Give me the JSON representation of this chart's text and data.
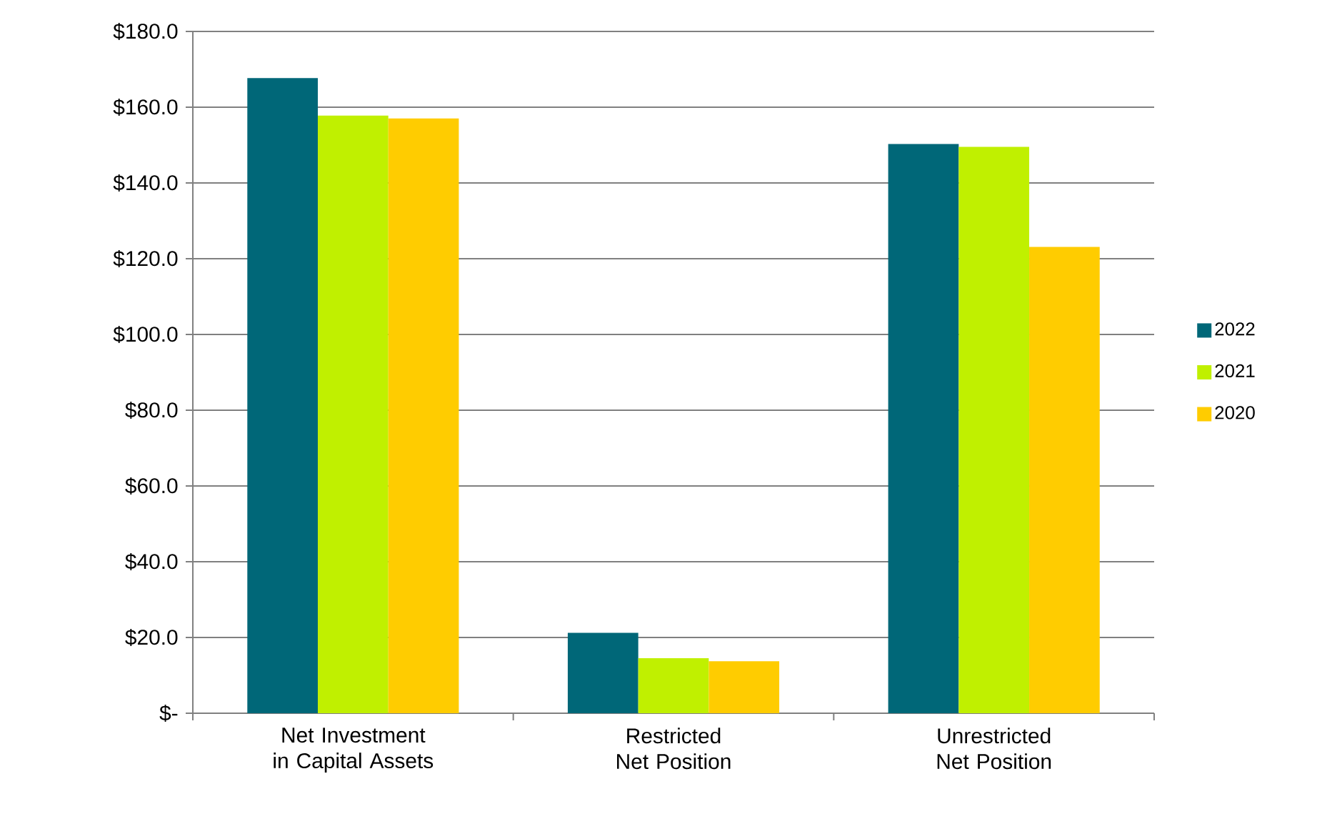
{
  "chart_data": {
    "type": "bar",
    "categories": [
      "Net Investment in Capital Assets",
      "Restricted Net Position",
      "Unrestricted Net Position"
    ],
    "series": [
      {
        "name": "2022",
        "color": "#006778",
        "values": [
          167.7,
          21.2,
          150.3
        ]
      },
      {
        "name": "2021",
        "color": "#c0f000",
        "values": [
          157.8,
          14.5,
          149.5
        ]
      },
      {
        "name": "2020",
        "color": "#ffcc00",
        "values": [
          157.0,
          13.7,
          123.1
        ]
      }
    ],
    "ylim": [
      0,
      180
    ],
    "yticks": [
      {
        "value": 0,
        "label": "$-"
      },
      {
        "value": 20,
        "label": "$20.0"
      },
      {
        "value": 40,
        "label": "$40.0"
      },
      {
        "value": 60,
        "label": "$60.0"
      },
      {
        "value": 80,
        "label": "$80.0"
      },
      {
        "value": 100,
        "label": "$100.0"
      },
      {
        "value": 120,
        "label": "$120.0"
      },
      {
        "value": 140,
        "label": "$140.0"
      },
      {
        "value": 160,
        "label": "$160.0"
      },
      {
        "value": 180,
        "label": "$180.0"
      }
    ],
    "grid": "y",
    "legend": "right"
  }
}
